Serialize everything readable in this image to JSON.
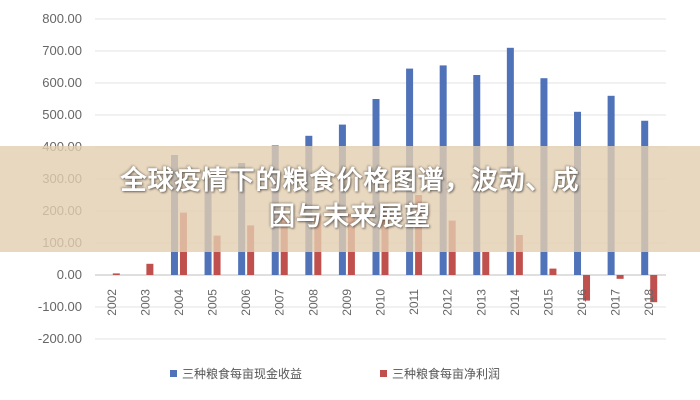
{
  "chart_data": {
    "type": "bar",
    "categories": [
      "2002",
      "2003",
      "2004",
      "2005",
      "2006",
      "2007",
      "2008",
      "2009",
      "2010",
      "2011",
      "2012",
      "2013",
      "2014",
      "2015",
      "2016",
      "2017",
      "2018"
    ],
    "series": [
      {
        "name": "三种粮食每亩现金收益",
        "color": "#4f72b8",
        "values": [
          0,
          0,
          375,
          300,
          350,
          405,
          435,
          470,
          550,
          645,
          655,
          625,
          710,
          615,
          510,
          560,
          482
        ]
      },
      {
        "name": "三种粮食每亩净利润",
        "color": "#c0504d",
        "values": [
          5,
          35,
          195,
          123,
          155,
          185,
          185,
          190,
          225,
          250,
          170,
          72,
          125,
          20,
          -80,
          -12,
          -85
        ]
      }
    ],
    "yticks": [
      "800.00",
      "700.00",
      "600.00",
      "500.00",
      "400.00",
      "300.00",
      "200.00",
      "100.00",
      "0.00",
      "-100.00",
      "-200.00"
    ],
    "ylim": [
      -200,
      800
    ],
    "title": "",
    "xlabel": "",
    "ylabel": "",
    "grid": true,
    "legend_position": "bottom"
  },
  "overlay": {
    "line1": "全球疫情下的粮食价格图谱，波动、成",
    "line2": "因与未来展望"
  }
}
